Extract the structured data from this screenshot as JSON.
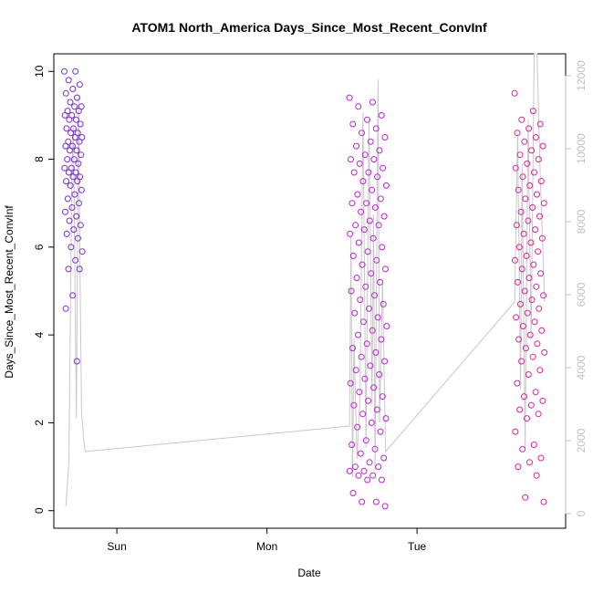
{
  "chart_data": {
    "type": "scatter",
    "title": "ATOM1 North_America Days_Since_Most_Recent_ConvInf",
    "xlabel": "Date",
    "ylabel": "Days_Since_Most_Recent_ConvInf",
    "x_unit": "days",
    "x_ticks": [
      {
        "label": "Sun",
        "value": 1.0
      },
      {
        "label": "Mon",
        "value": 2.0
      },
      {
        "label": "Tue",
        "value": 3.0
      }
    ],
    "xlim": [
      0.58,
      3.99
    ],
    "ylim": [
      -0.4,
      10.4
    ],
    "y_ticks": [
      0,
      2,
      4,
      6,
      8,
      10
    ],
    "y2_ticks": [
      0,
      2000,
      4000,
      6000,
      8000,
      10000,
      12000
    ],
    "y2lim": [
      -400,
      12600
    ],
    "grid": false,
    "legend": "none",
    "colors": {
      "sun_cluster": "#7a2bd8",
      "mon_cluster": "#c020d8",
      "tue_cluster": "#e0209a",
      "count_line": "#c8c8c8",
      "axis": "#000000",
      "right_axis": "#c0c0c0"
    },
    "clusters": [
      {
        "name": "Sun",
        "x_range": [
          0.65,
          0.77
        ],
        "y_values": [
          10.0,
          10.0,
          9.8,
          9.7,
          9.6,
          9.5,
          9.4,
          9.3,
          9.2,
          9.2,
          9.1,
          9.1,
          9.0,
          9.0,
          8.9,
          8.9,
          8.8,
          8.7,
          8.7,
          8.6,
          8.6,
          8.5,
          8.5,
          8.4,
          8.4,
          8.3,
          8.3,
          8.2,
          8.2,
          8.1,
          8.0,
          8.0,
          7.9,
          7.8,
          7.8,
          7.7,
          7.7,
          7.6,
          7.6,
          7.5,
          7.5,
          7.4,
          7.3,
          7.2,
          7.1,
          7.0,
          6.9,
          6.8,
          6.7,
          6.6,
          6.5,
          6.4,
          6.3,
          6.2,
          6.0,
          5.9,
          5.7,
          5.5,
          5.5,
          4.9,
          4.6,
          3.4
        ]
      },
      {
        "name": "Mon",
        "x_range": [
          2.55,
          2.8
        ],
        "y_values": [
          9.4,
          9.3,
          9.2,
          9.0,
          8.9,
          8.8,
          8.7,
          8.6,
          8.5,
          8.4,
          8.3,
          8.2,
          8.1,
          8.0,
          8.0,
          7.9,
          7.8,
          7.7,
          7.7,
          7.6,
          7.5,
          7.4,
          7.3,
          7.2,
          7.1,
          7.0,
          7.0,
          6.9,
          6.8,
          6.7,
          6.6,
          6.5,
          6.5,
          6.4,
          6.3,
          6.2,
          6.1,
          6.0,
          5.9,
          5.8,
          5.7,
          5.6,
          5.5,
          5.4,
          5.3,
          5.2,
          5.1,
          5.0,
          4.9,
          4.8,
          4.7,
          4.6,
          4.5,
          4.4,
          4.3,
          4.2,
          4.1,
          4.0,
          3.9,
          3.8,
          3.7,
          3.6,
          3.5,
          3.4,
          3.3,
          3.2,
          3.1,
          3.0,
          2.9,
          2.8,
          2.7,
          2.6,
          2.5,
          2.4,
          2.3,
          2.2,
          2.1,
          2.0,
          1.9,
          1.8,
          1.6,
          1.5,
          1.4,
          1.3,
          1.2,
          1.1,
          1.0,
          1.0,
          0.9,
          0.9,
          0.8,
          0.8,
          0.7,
          0.7,
          0.4,
          0.2,
          0.2,
          0.1
        ]
      },
      {
        "name": "Tue",
        "x_range": [
          3.65,
          3.85
        ],
        "y_values": [
          9.5,
          9.1,
          8.9,
          8.8,
          8.7,
          8.6,
          8.5,
          8.4,
          8.3,
          8.2,
          8.1,
          8.0,
          7.9,
          7.8,
          7.7,
          7.6,
          7.5,
          7.4,
          7.3,
          7.2,
          7.1,
          7.0,
          6.9,
          6.8,
          6.7,
          6.6,
          6.5,
          6.4,
          6.3,
          6.2,
          6.1,
          6.0,
          5.9,
          5.8,
          5.7,
          5.6,
          5.5,
          5.4,
          5.3,
          5.2,
          5.1,
          5.0,
          4.9,
          4.8,
          4.7,
          4.6,
          4.5,
          4.4,
          4.3,
          4.2,
          4.1,
          4.0,
          3.9,
          3.8,
          3.7,
          3.6,
          3.5,
          3.4,
          3.2,
          3.1,
          2.9,
          2.7,
          2.6,
          2.5,
          2.4,
          2.3,
          2.2,
          2.1,
          1.8,
          1.5,
          1.4,
          1.2,
          1.1,
          1.0,
          0.8,
          0.3,
          0.2
        ]
      }
    ],
    "count_series": {
      "name": "count",
      "axis": "right",
      "points": [
        [
          0.66,
          200
        ],
        [
          0.68,
          1400
        ],
        [
          0.7,
          9200
        ],
        [
          0.71,
          10600
        ],
        [
          0.72,
          6800
        ],
        [
          0.73,
          2600
        ],
        [
          0.745,
          11400
        ],
        [
          0.755,
          6400
        ],
        [
          0.765,
          2800
        ],
        [
          0.78,
          2000
        ],
        [
          0.79,
          1700
        ],
        [
          2.55,
          2400
        ],
        [
          2.56,
          7600
        ],
        [
          2.57,
          1000
        ],
        [
          2.58,
          4800
        ],
        [
          2.6,
          1500
        ],
        [
          2.62,
          3200
        ],
        [
          2.64,
          11000
        ],
        [
          2.66,
          1800
        ],
        [
          2.68,
          10800
        ],
        [
          2.7,
          3000
        ],
        [
          2.71,
          8200
        ],
        [
          2.72,
          1200
        ],
        [
          2.74,
          11900
        ],
        [
          2.75,
          2500
        ],
        [
          2.77,
          6400
        ],
        [
          2.79,
          1700
        ],
        [
          3.65,
          5800
        ],
        [
          3.67,
          10400
        ],
        [
          3.69,
          3400
        ],
        [
          3.7,
          9600
        ],
        [
          3.72,
          1800
        ],
        [
          3.74,
          10800
        ],
        [
          3.76,
          4800
        ],
        [
          3.78,
          12600
        ],
        [
          3.8,
          12600
        ],
        [
          3.82,
          9400
        ],
        [
          3.85,
          5800
        ]
      ]
    }
  }
}
